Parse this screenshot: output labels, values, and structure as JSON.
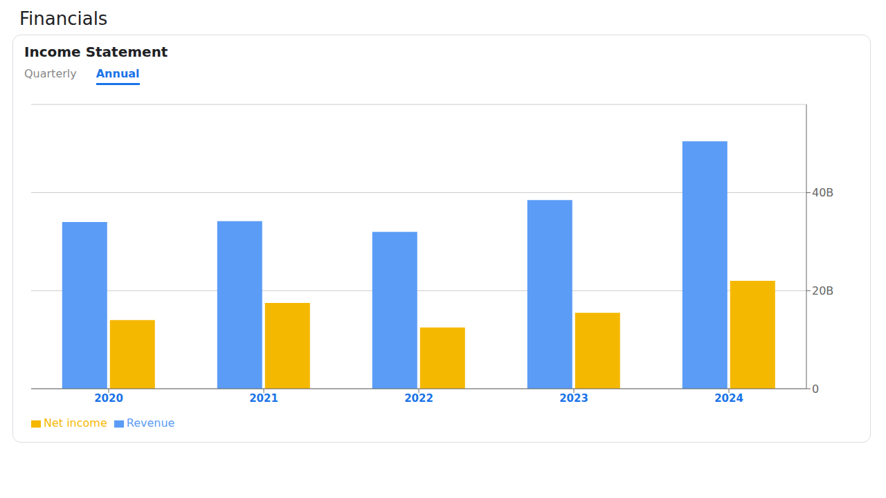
{
  "chart_data": {
    "type": "bar",
    "title": "Financials",
    "subtitle": "Income Statement",
    "annotations": [
      "Quarterly",
      "Annual"
    ],
    "categories": [
      "2020",
      "2021",
      "2022",
      "2023",
      "2024"
    ],
    "series": [
      {
        "name": "Revenue",
        "color": "#5b9cf6",
        "values": [
          34.0,
          34.2,
          32.0,
          38.5,
          50.5
        ]
      },
      {
        "name": "Net income",
        "color": "#f5b800",
        "values": [
          14.0,
          17.5,
          12.5,
          15.5,
          22.0
        ]
      }
    ],
    "ylim": [
      0,
      58
    ],
    "yticks": [
      0,
      {
        "value": 20,
        "label": "20B"
      },
      {
        "value": 40,
        "label": "40B"
      }
    ],
    "grid": true,
    "legend": "lower left"
  }
}
